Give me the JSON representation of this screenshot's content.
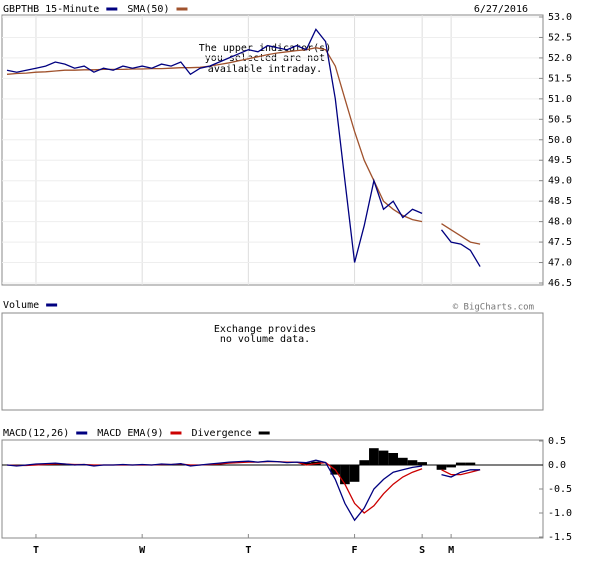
{
  "chart_data": [
    {
      "type": "line",
      "date": "6/27/2016",
      "annotation": [
        "The upper indicator(s)",
        "you selected are not",
        "available intraday."
      ],
      "source": "© BigCharts.com",
      "series": [
        {
          "name": "GBPTHB 15-Minute",
          "color": "#000080",
          "values": [
            51.7,
            51.65,
            51.7,
            51.75,
            51.8,
            51.9,
            51.85,
            51.75,
            51.8,
            51.65,
            51.75,
            51.7,
            51.8,
            51.75,
            51.8,
            51.75,
            51.85,
            51.8,
            51.9,
            51.6,
            51.75,
            51.8,
            51.9,
            52.0,
            52.1,
            52.2,
            52.15,
            52.3,
            52.25,
            52.2,
            52.3,
            52.2,
            52.7,
            52.4,
            51.0,
            49.0,
            47.0,
            47.9,
            49.0,
            48.3,
            48.5,
            48.1,
            48.3,
            48.2,
            null,
            47.8,
            47.5,
            47.45,
            47.3,
            46.9,
            null,
            null,
            null,
            null,
            null,
            null
          ]
        },
        {
          "name": "SMA(50)",
          "color": "#a0522d",
          "values": [
            51.6,
            51.62,
            51.63,
            51.65,
            51.66,
            51.68,
            51.7,
            51.7,
            51.71,
            51.71,
            51.72,
            51.72,
            51.72,
            51.73,
            51.73,
            51.74,
            51.74,
            51.75,
            51.76,
            51.76,
            51.77,
            51.8,
            51.84,
            51.88,
            51.93,
            51.98,
            52.03,
            52.08,
            52.12,
            52.15,
            52.18,
            52.2,
            52.25,
            52.2,
            51.8,
            51.0,
            50.2,
            49.5,
            49.0,
            48.5,
            48.3,
            48.15,
            48.05,
            48.0,
            null,
            47.95,
            47.8,
            47.65,
            47.5,
            47.45,
            null,
            null,
            null,
            null,
            null,
            null
          ]
        }
      ],
      "ylim": [
        46.5,
        53.0
      ],
      "yticks": [
        {
          "value": 53,
          "label": "53.0"
        },
        52.5,
        {
          "value": 52,
          "label": "52.0"
        },
        51.5,
        {
          "value": 51,
          "label": "51.0"
        },
        50.5,
        {
          "value": 50,
          "label": "50.0"
        },
        49.5,
        {
          "value": 49,
          "label": "49.0"
        },
        48.5,
        {
          "value": 48,
          "label": "48.0"
        },
        47.5,
        {
          "value": 47,
          "label": "47.0"
        },
        46.5
      ],
      "grid": true
    },
    {
      "type": "bar",
      "series": [
        {
          "name": "Volume",
          "color": "#000080"
        }
      ],
      "annotation": [
        "Exchange provides",
        "no volume data."
      ]
    },
    {
      "type": "line",
      "categories": [
        null,
        null,
        null,
        "T",
        null,
        null,
        null,
        null,
        null,
        null,
        null,
        null,
        null,
        null,
        "W",
        null,
        null,
        null,
        null,
        null,
        null,
        null,
        null,
        null,
        null,
        "T",
        null,
        null,
        null,
        null,
        null,
        null,
        null,
        null,
        null,
        null,
        "F",
        null,
        null,
        null,
        null,
        null,
        null,
        "S",
        null,
        null,
        "M",
        null,
        null,
        null,
        null,
        null,
        null,
        null,
        null,
        null
      ],
      "series": [
        {
          "name": "MACD(12,26)",
          "color": "#000080",
          "values": [
            0,
            -0.02,
            0,
            0.02,
            0.03,
            0.04,
            0.02,
            0,
            0.01,
            -0.02,
            0,
            0,
            0.01,
            0,
            0.01,
            0,
            0.02,
            0.01,
            0.03,
            -0.02,
            0,
            0.02,
            0.04,
            0.06,
            0.07,
            0.08,
            0.06,
            0.08,
            0.07,
            0.05,
            0.06,
            0.05,
            0.1,
            0.05,
            -0.3,
            -0.8,
            -1.15,
            -0.9,
            -0.5,
            -0.3,
            -0.15,
            -0.1,
            -0.05,
            -0.02,
            null,
            -0.2,
            -0.25,
            -0.15,
            -0.1,
            -0.1,
            null,
            null,
            null,
            null,
            null,
            null
          ]
        },
        {
          "name": "MACD EMA(9)",
          "color": "#cc0000",
          "values": [
            0,
            -0.01,
            -0.01,
            0,
            0.01,
            0.02,
            0.02,
            0.01,
            0.01,
            0,
            0,
            0,
            0,
            0,
            0,
            0,
            0.01,
            0.01,
            0.02,
            0,
            0,
            0.01,
            0.02,
            0.04,
            0.05,
            0.06,
            0.06,
            0.07,
            0.07,
            0.06,
            0.06,
            0.0,
            0.03,
            0.05,
            -0.1,
            -0.4,
            -0.8,
            -1.0,
            -0.85,
            -0.6,
            -0.4,
            -0.25,
            -0.15,
            -0.08,
            null,
            -0.1,
            -0.2,
            -0.2,
            -0.15,
            -0.1,
            null,
            null,
            null,
            null,
            null,
            null
          ]
        },
        {
          "name": "Divergence",
          "color": "#000000",
          "values": [
            0,
            0,
            0,
            0,
            0,
            0,
            0,
            0,
            0,
            0,
            0,
            0,
            0,
            0,
            0,
            0,
            0,
            0,
            0,
            0,
            0,
            0,
            0,
            0,
            0,
            0,
            0,
            0,
            0,
            0,
            0,
            0.05,
            0.07,
            0,
            -0.2,
            -0.4,
            -0.35,
            0.1,
            0.35,
            0.3,
            0.25,
            0.15,
            0.1,
            0.06,
            null,
            -0.1,
            -0.05,
            0.05,
            0.05,
            0,
            null,
            null,
            null,
            null,
            null,
            null
          ]
        }
      ],
      "ylim": [
        -1.5,
        0.5
      ],
      "yticks": [
        0.5,
        {
          "value": 0,
          "label": "0.0"
        },
        -0.5,
        {
          "value": -1,
          "label": "-1.0"
        },
        -1.5
      ]
    }
  ]
}
